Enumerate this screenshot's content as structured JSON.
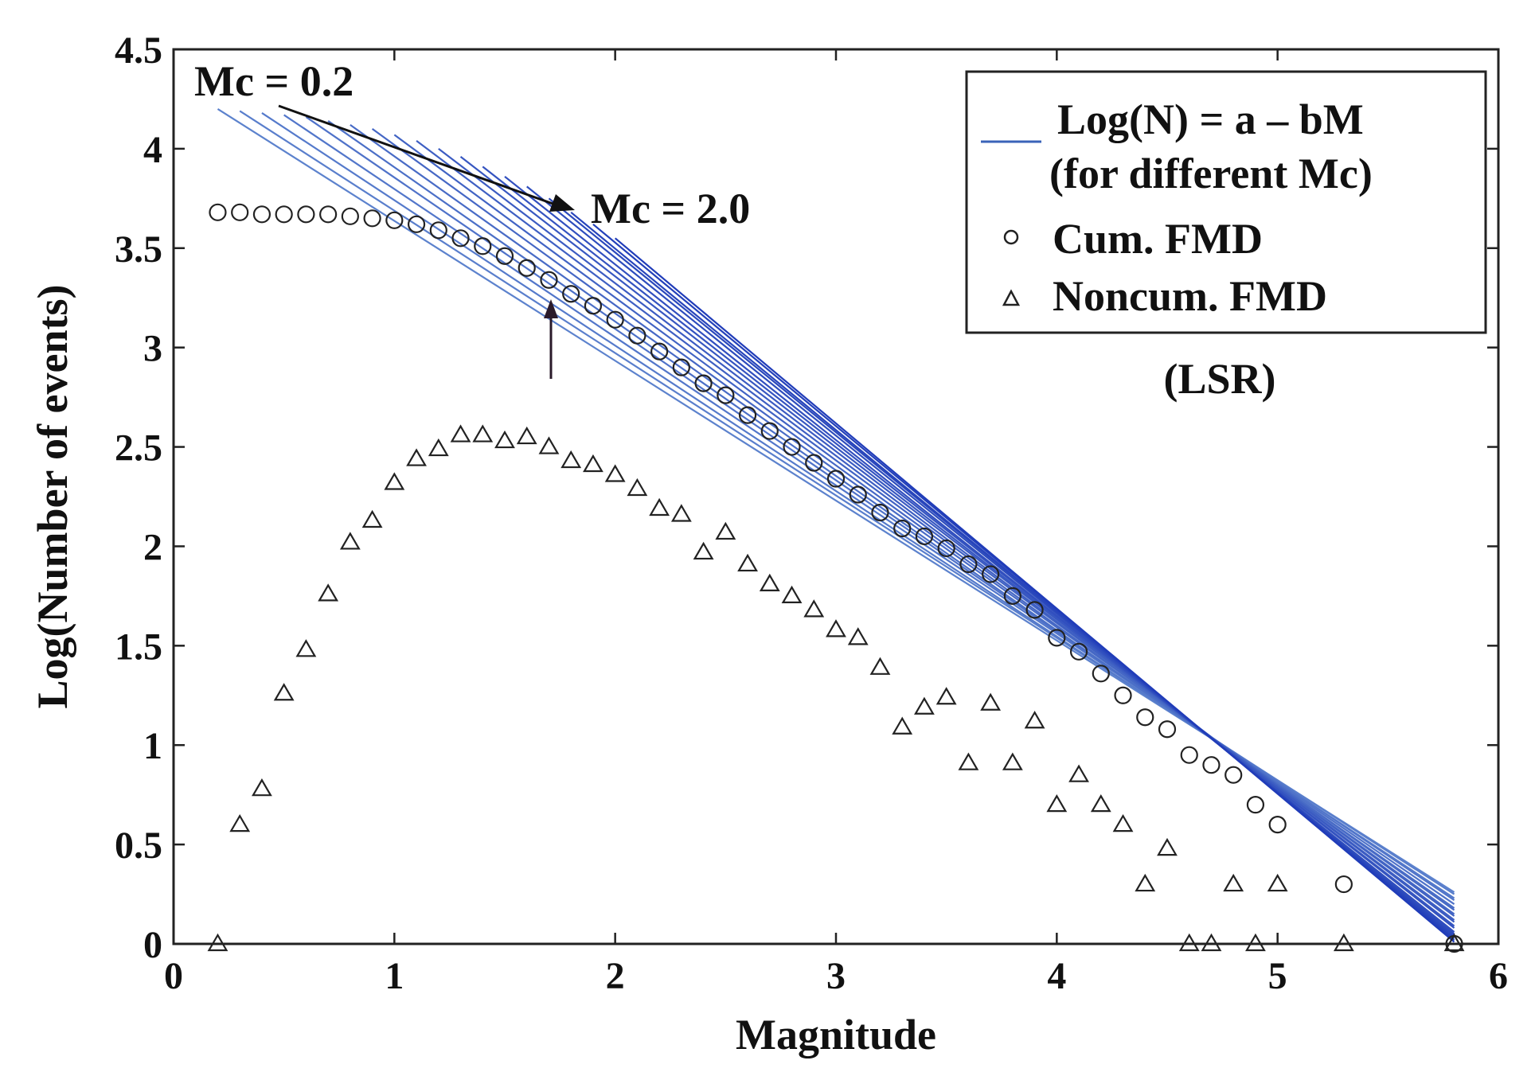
{
  "chart_data": {
    "type": "scatter",
    "title": "",
    "xlabel": "Magnitude",
    "ylabel": "Log(Number of events)",
    "xlim": [
      0,
      6
    ],
    "ylim": [
      0,
      4.5
    ],
    "xticks": [
      "0",
      "1",
      "2",
      "3",
      "4",
      "5",
      "6"
    ],
    "yticks": [
      "0",
      "0.5",
      "1",
      "1.5",
      "2",
      "2.5",
      "3",
      "3.5",
      "4",
      "4.5"
    ],
    "series": [
      {
        "name": "Cum. FMD",
        "marker": "circle",
        "x": [
          0.2,
          0.3,
          0.4,
          0.5,
          0.6,
          0.7,
          0.8,
          0.9,
          1.0,
          1.1,
          1.2,
          1.3,
          1.4,
          1.5,
          1.6,
          1.7,
          1.8,
          1.9,
          2.0,
          2.1,
          2.2,
          2.3,
          2.4,
          2.5,
          2.6,
          2.7,
          2.8,
          2.9,
          3.0,
          3.1,
          3.2,
          3.3,
          3.4,
          3.5,
          3.6,
          3.7,
          3.8,
          3.9,
          4.0,
          4.1,
          4.2,
          4.3,
          4.4,
          4.5,
          4.6,
          4.7,
          4.8,
          4.9,
          5.0,
          5.3,
          5.8
        ],
        "y": [
          3.68,
          3.68,
          3.67,
          3.67,
          3.67,
          3.67,
          3.66,
          3.65,
          3.64,
          3.62,
          3.59,
          3.55,
          3.51,
          3.46,
          3.4,
          3.34,
          3.27,
          3.21,
          3.14,
          3.06,
          2.98,
          2.9,
          2.82,
          2.76,
          2.66,
          2.58,
          2.5,
          2.42,
          2.34,
          2.26,
          2.17,
          2.09,
          2.05,
          1.99,
          1.91,
          1.86,
          1.75,
          1.68,
          1.54,
          1.47,
          1.36,
          1.25,
          1.14,
          1.08,
          0.95,
          0.9,
          0.85,
          0.7,
          0.6,
          0.3,
          0.0
        ]
      },
      {
        "name": "Noncum. FMD",
        "marker": "triangle",
        "x": [
          0.2,
          0.3,
          0.4,
          0.5,
          0.6,
          0.7,
          0.8,
          0.9,
          1.0,
          1.1,
          1.2,
          1.3,
          1.4,
          1.5,
          1.6,
          1.7,
          1.8,
          1.9,
          2.0,
          2.1,
          2.2,
          2.3,
          2.4,
          2.5,
          2.6,
          2.7,
          2.8,
          2.9,
          3.0,
          3.1,
          3.2,
          3.3,
          3.4,
          3.5,
          3.6,
          3.7,
          3.8,
          3.9,
          4.0,
          4.1,
          4.2,
          4.3,
          4.4,
          4.5,
          4.6,
          4.7,
          4.8,
          4.9,
          5.0,
          5.3,
          5.8
        ],
        "y": [
          0.0,
          0.6,
          0.78,
          1.26,
          1.48,
          1.76,
          2.02,
          2.13,
          2.32,
          2.44,
          2.49,
          2.56,
          2.56,
          2.53,
          2.55,
          2.5,
          2.43,
          2.41,
          2.36,
          2.29,
          2.19,
          2.16,
          1.97,
          2.07,
          1.91,
          1.81,
          1.75,
          1.68,
          1.58,
          1.54,
          1.39,
          1.09,
          1.19,
          1.24,
          0.91,
          1.21,
          0.91,
          1.12,
          0.7,
          0.85,
          0.7,
          0.6,
          0.3,
          0.48,
          0.0,
          0.0,
          0.3,
          0.0,
          0.3,
          0.0,
          0.0
        ]
      },
      {
        "name": "Log(N) = a – bM (for different Mc)",
        "marker": "line",
        "fit_lines": [
          {
            "mc": 0.2,
            "x": [
              0.2,
              5.8
            ],
            "y": [
              4.2,
              0.26
            ]
          },
          {
            "mc": 0.3,
            "x": [
              0.3,
              5.8
            ],
            "y": [
              4.19,
              0.25
            ]
          },
          {
            "mc": 0.4,
            "x": [
              0.4,
              5.8
            ],
            "y": [
              4.18,
              0.23
            ]
          },
          {
            "mc": 0.5,
            "x": [
              0.5,
              5.8
            ],
            "y": [
              4.17,
              0.22
            ]
          },
          {
            "mc": 0.6,
            "x": [
              0.6,
              5.8
            ],
            "y": [
              4.16,
              0.2
            ]
          },
          {
            "mc": 0.7,
            "x": [
              0.7,
              5.8
            ],
            "y": [
              4.14,
              0.18
            ]
          },
          {
            "mc": 0.8,
            "x": [
              0.8,
              5.8
            ],
            "y": [
              4.12,
              0.17
            ]
          },
          {
            "mc": 0.9,
            "x": [
              0.9,
              5.8
            ],
            "y": [
              4.1,
              0.15
            ]
          },
          {
            "mc": 1.0,
            "x": [
              1.0,
              5.8
            ],
            "y": [
              4.07,
              0.14
            ]
          },
          {
            "mc": 1.1,
            "x": [
              1.1,
              5.8
            ],
            "y": [
              4.04,
              0.12
            ]
          },
          {
            "mc": 1.2,
            "x": [
              1.2,
              5.8
            ],
            "y": [
              4.0,
              0.11
            ]
          },
          {
            "mc": 1.3,
            "x": [
              1.3,
              5.8
            ],
            "y": [
              3.96,
              0.09
            ]
          },
          {
            "mc": 1.4,
            "x": [
              1.4,
              5.8
            ],
            "y": [
              3.91,
              0.08
            ]
          },
          {
            "mc": 1.5,
            "x": [
              1.5,
              5.8
            ],
            "y": [
              3.86,
              0.06
            ]
          },
          {
            "mc": 1.6,
            "x": [
              1.6,
              5.8
            ],
            "y": [
              3.81,
              0.05
            ]
          },
          {
            "mc": 1.7,
            "x": [
              1.7,
              5.8
            ],
            "y": [
              3.75,
              0.04
            ]
          },
          {
            "mc": 1.8,
            "x": [
              1.8,
              5.8
            ],
            "y": [
              3.68,
              0.03
            ]
          },
          {
            "mc": 1.9,
            "x": [
              1.9,
              5.8
            ],
            "y": [
              3.62,
              0.02
            ]
          },
          {
            "mc": 2.0,
            "x": [
              2.0,
              5.8
            ],
            "y": [
              3.55,
              0.01
            ]
          }
        ]
      }
    ],
    "legend": {
      "position": "top-right",
      "entries": [
        "Log(N) = a – bM",
        "(for different Mc)",
        "Cum. FMD",
        "Noncum. FMD"
      ]
    },
    "annotations": {
      "mc_low": "Mc = 0.2",
      "mc_high": "Mc = 2.0",
      "method": "(LSR)"
    },
    "colors": {
      "fit_line": "#3a63b8",
      "markers": "#222222",
      "axes": "#222222"
    }
  }
}
